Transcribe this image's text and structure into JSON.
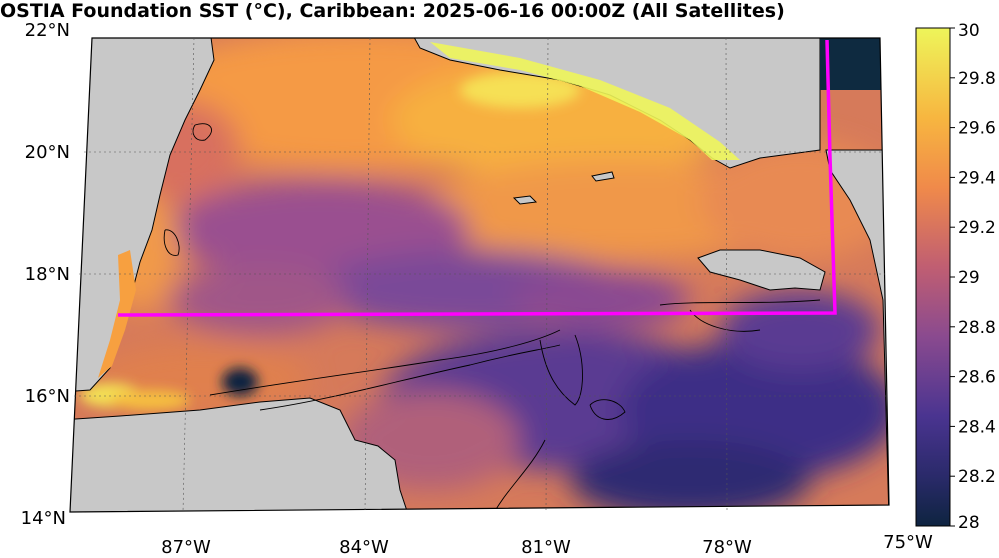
{
  "title": "OSTIA Foundation SST (°C), Caribbean: 2025-06-16 00:00Z (All Satellites)",
  "map": {
    "lat_labels": [
      "22°N",
      "20°N",
      "18°N",
      "16°N",
      "14°N"
    ],
    "lon_labels": [
      "87°W",
      "84°W",
      "81°W",
      "78°W",
      "75°W"
    ],
    "land_color": "#c8c8c8",
    "box_color": "#ff00ff",
    "coastline_color": "#000000"
  },
  "colorbar": {
    "min": 28,
    "max": 30,
    "tick_labels": [
      "30",
      "29.8",
      "29.6",
      "29.4",
      "29.2",
      "29",
      "28.8",
      "28.6",
      "28.4",
      "28.2",
      "28"
    ],
    "colors": [
      "#eef55a",
      "#f7a23f",
      "#d56a66",
      "#8a4a8f",
      "#3d2a7e",
      "#0e2440"
    ]
  }
}
